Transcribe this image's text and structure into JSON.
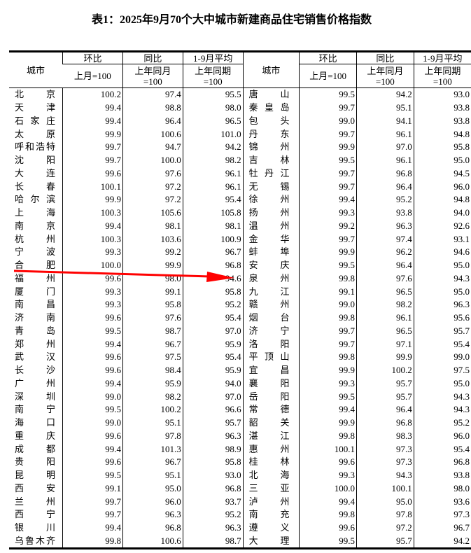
{
  "title": "表1：2025年9月70个大中城市新建商品住宅销售价格指数",
  "header": {
    "city": "城市",
    "mom": "环比",
    "mom_base": "上月=100",
    "yoy": "同比",
    "yoy_base_1": "上年同月",
    "yoy_base_2": "=100",
    "avg": "1-9月平均",
    "avg_base_1": "上年同期",
    "avg_base_2": "=100"
  },
  "annotation": {
    "arrow_color": "#ff0000",
    "arrow_from_row": "合肥",
    "arrow_to_row": "福州 94.6"
  },
  "rows": [
    [
      [
        "北京",
        "100.2",
        "97.4",
        "95.5"
      ],
      [
        "唐山",
        "99.5",
        "94.2",
        "93.0"
      ]
    ],
    [
      [
        "天津",
        "99.4",
        "98.8",
        "98.0"
      ],
      [
        "秦皇岛",
        "99.7",
        "95.1",
        "93.8"
      ]
    ],
    [
      [
        "石家庄",
        "99.4",
        "96.4",
        "96.5"
      ],
      [
        "包头",
        "99.0",
        "94.1",
        "93.8"
      ]
    ],
    [
      [
        "太原",
        "99.9",
        "100.6",
        "101.0"
      ],
      [
        "丹东",
        "99.7",
        "96.1",
        "94.8"
      ]
    ],
    [
      [
        "呼和浩特",
        "99.7",
        "94.7",
        "94.2"
      ],
      [
        "锦州",
        "99.9",
        "97.0",
        "95.8"
      ]
    ],
    [
      [
        "沈阳",
        "99.7",
        "100.0",
        "98.2"
      ],
      [
        "吉林",
        "99.5",
        "96.1",
        "95.0"
      ]
    ],
    [
      [
        "大连",
        "99.6",
        "97.6",
        "96.1"
      ],
      [
        "牡丹江",
        "99.7",
        "96.8",
        "94.5"
      ]
    ],
    [
      [
        "长春",
        "100.1",
        "97.2",
        "96.1"
      ],
      [
        "无锡",
        "99.7",
        "96.4",
        "96.0"
      ]
    ],
    [
      [
        "哈尔滨",
        "99.9",
        "97.2",
        "95.4"
      ],
      [
        "徐州",
        "99.4",
        "95.2",
        "94.8"
      ]
    ],
    [
      [
        "上海",
        "100.3",
        "105.6",
        "105.8"
      ],
      [
        "扬州",
        "99.3",
        "93.8",
        "94.0"
      ]
    ],
    [
      [
        "南京",
        "99.4",
        "98.1",
        "98.1"
      ],
      [
        "温州",
        "99.2",
        "96.3",
        "92.6"
      ]
    ],
    [
      [
        "杭州",
        "100.3",
        "103.6",
        "100.9"
      ],
      [
        "金华",
        "99.7",
        "97.4",
        "93.1"
      ]
    ],
    [
      [
        "宁波",
        "99.3",
        "99.2",
        "96.7"
      ],
      [
        "蚌埠",
        "99.9",
        "96.2",
        "94.6"
      ]
    ],
    [
      [
        "合肥",
        "100.0",
        "99.9",
        "96.8"
      ],
      [
        "安庆",
        "99.5",
        "96.4",
        "95.0"
      ]
    ],
    [
      [
        "福州",
        "99.6",
        "98.0",
        "94.6"
      ],
      [
        "泉州",
        "99.8",
        "97.6",
        "94.3"
      ]
    ],
    [
      [
        "厦门",
        "99.3",
        "99.1",
        "95.8"
      ],
      [
        "九江",
        "99.1",
        "96.5",
        "95.0"
      ]
    ],
    [
      [
        "南昌",
        "99.3",
        "95.8",
        "95.2"
      ],
      [
        "赣州",
        "99.0",
        "98.2",
        "96.3"
      ]
    ],
    [
      [
        "济南",
        "99.6",
        "97.6",
        "95.4"
      ],
      [
        "烟台",
        "99.8",
        "96.1",
        "95.6"
      ]
    ],
    [
      [
        "青岛",
        "99.5",
        "98.7",
        "97.0"
      ],
      [
        "济宁",
        "99.7",
        "96.5",
        "95.7"
      ]
    ],
    [
      [
        "郑州",
        "99.4",
        "96.7",
        "95.9"
      ],
      [
        "洛阳",
        "99.7",
        "97.1",
        "95.4"
      ]
    ],
    [
      [
        "武汉",
        "99.6",
        "97.5",
        "95.4"
      ],
      [
        "平顶山",
        "99.8",
        "99.9",
        "99.0"
      ]
    ],
    [
      [
        "长沙",
        "99.6",
        "98.4",
        "95.9"
      ],
      [
        "宜昌",
        "99.9",
        "100.2",
        "97.5"
      ]
    ],
    [
      [
        "广州",
        "99.4",
        "95.9",
        "94.0"
      ],
      [
        "襄阳",
        "99.3",
        "95.7",
        "95.0"
      ]
    ],
    [
      [
        "深圳",
        "99.0",
        "98.2",
        "97.0"
      ],
      [
        "岳阳",
        "99.5",
        "95.7",
        "94.3"
      ]
    ],
    [
      [
        "南宁",
        "99.5",
        "100.2",
        "96.6"
      ],
      [
        "常德",
        "99.4",
        "96.4",
        "94.3"
      ]
    ],
    [
      [
        "海口",
        "99.0",
        "95.1",
        "95.7"
      ],
      [
        "韶关",
        "99.9",
        "96.8",
        "95.2"
      ]
    ],
    [
      [
        "重庆",
        "99.6",
        "97.8",
        "96.3"
      ],
      [
        "湛江",
        "99.8",
        "98.3",
        "96.0"
      ]
    ],
    [
      [
        "成都",
        "99.4",
        "101.3",
        "98.9"
      ],
      [
        "惠州",
        "100.1",
        "97.3",
        "95.4"
      ]
    ],
    [
      [
        "贵阳",
        "99.6",
        "96.7",
        "95.8"
      ],
      [
        "桂林",
        "99.6",
        "97.3",
        "96.8"
      ]
    ],
    [
      [
        "昆明",
        "99.5",
        "95.1",
        "93.0"
      ],
      [
        "北海",
        "99.3",
        "94.3",
        "93.8"
      ]
    ],
    [
      [
        "西安",
        "99.1",
        "95.0",
        "96.8"
      ],
      [
        "三亚",
        "100.0",
        "100.1",
        "98.0"
      ]
    ],
    [
      [
        "兰州",
        "99.7",
        "96.0",
        "93.7"
      ],
      [
        "泸州",
        "99.4",
        "95.0",
        "93.6"
      ]
    ],
    [
      [
        "西宁",
        "99.7",
        "96.3",
        "95.2"
      ],
      [
        "南充",
        "99.8",
        "97.8",
        "97.3"
      ]
    ],
    [
      [
        "银川",
        "99.4",
        "96.8",
        "96.3"
      ],
      [
        "遵义",
        "99.6",
        "97.2",
        "96.7"
      ]
    ],
    [
      [
        "乌鲁木齐",
        "99.8",
        "100.6",
        "98.7"
      ],
      [
        "大理",
        "99.5",
        "95.7",
        "94.2"
      ]
    ]
  ]
}
